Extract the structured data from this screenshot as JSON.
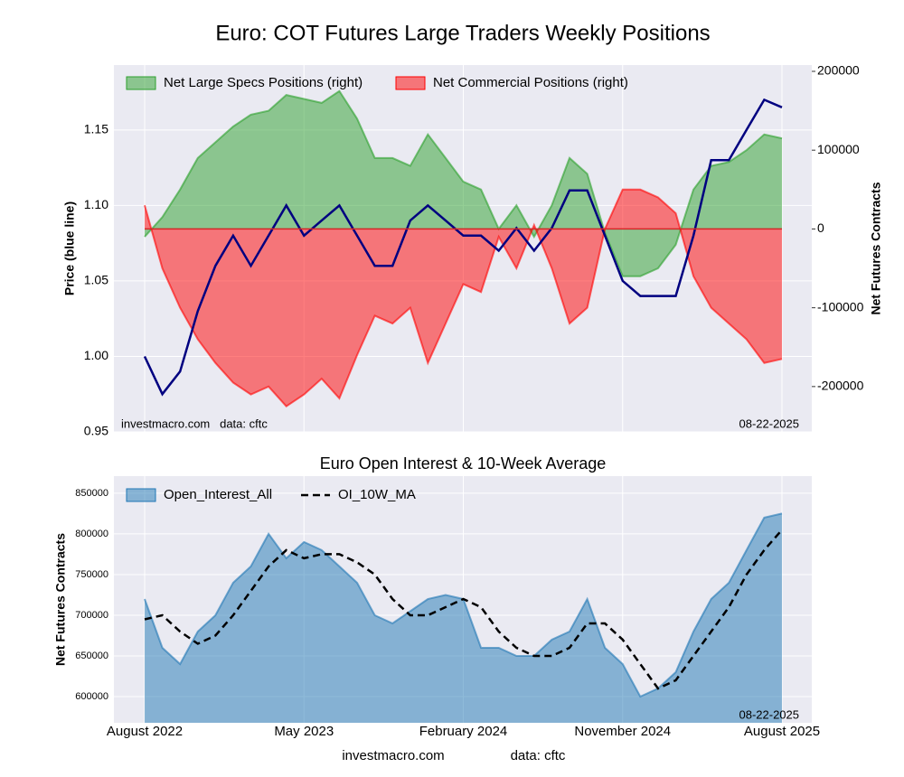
{
  "chart_data": [
    {
      "type": "line",
      "title": "Euro: COT Futures Large Traders Weekly Positions",
      "y_label": "Price (blue line)",
      "y2_label": "Net Futures Contracts",
      "note_left": "investmacro.com   data: cftc",
      "note_right": "08-22-2025",
      "x": [
        "2022-08",
        "2022-09",
        "2022-10",
        "2022-11",
        "2022-12",
        "2023-01",
        "2023-02",
        "2023-03",
        "2023-04",
        "2023-05",
        "2023-06",
        "2023-07",
        "2023-08",
        "2023-09",
        "2023-10",
        "2023-11",
        "2023-12",
        "2024-01",
        "2024-02",
        "2024-03",
        "2024-04",
        "2024-05",
        "2024-06",
        "2024-07",
        "2024-08",
        "2024-09",
        "2024-10",
        "2024-11",
        "2024-12",
        "2025-01",
        "2025-02",
        "2025-03",
        "2025-04",
        "2025-05",
        "2025-06",
        "2025-07",
        "2025-08"
      ],
      "ylim": [
        0.95,
        1.193
      ],
      "yticks": [
        0.95,
        {
          "value": 1,
          "label": "1.00"
        },
        1.05,
        {
          "value": 1.1,
          "label": "1.10"
        },
        1.15
      ],
      "y2lim": [
        -257500,
        208000
      ],
      "y2ticks": [
        -200000,
        -100000,
        0,
        100000,
        200000
      ],
      "grid": true,
      "series": [
        {
          "name": "Net Large Specs Positions (right)",
          "color": "#2ca02c",
          "style": "area",
          "axis": "y2",
          "values": [
            -10000,
            15000,
            50000,
            90000,
            110000,
            130000,
            145000,
            150000,
            170000,
            165000,
            160000,
            175000,
            140000,
            90000,
            90000,
            80000,
            120000,
            90000,
            60000,
            50000,
            0,
            30000,
            -10000,
            30000,
            90000,
            70000,
            -5000,
            -60000,
            -60000,
            -50000,
            -20000,
            50000,
            80000,
            85000,
            100000,
            120000,
            115000
          ]
        },
        {
          "name": "Net Commercial Positions (right)",
          "color": "#ff0000",
          "style": "area",
          "axis": "y2",
          "values": [
            30000,
            -50000,
            -100000,
            -140000,
            -170000,
            -195000,
            -210000,
            -200000,
            -225000,
            -210000,
            -190000,
            -215000,
            -160000,
            -110000,
            -120000,
            -100000,
            -170000,
            -120000,
            -70000,
            -80000,
            -10000,
            -50000,
            5000,
            -50000,
            -120000,
            -100000,
            0,
            50000,
            50000,
            40000,
            20000,
            -60000,
            -100000,
            -120000,
            -140000,
            -170000,
            -165000
          ]
        },
        {
          "name": "Price",
          "color": "#000080",
          "style": "line",
          "values": [
            1.0,
            0.975,
            0.99,
            1.03,
            1.06,
            1.08,
            1.06,
            1.08,
            1.1,
            1.08,
            1.09,
            1.1,
            1.08,
            1.06,
            1.06,
            1.09,
            1.1,
            1.09,
            1.08,
            1.08,
            1.07,
            1.085,
            1.07,
            1.085,
            1.11,
            1.11,
            1.08,
            1.05,
            1.04,
            1.04,
            1.04,
            1.08,
            1.13,
            1.13,
            1.15,
            1.17,
            1.165
          ]
        }
      ]
    },
    {
      "type": "area",
      "title": "Euro Open Interest & 10-Week Average",
      "y_label": "Net Futures Contracts",
      "note_right": "08-22-2025",
      "footer_left": "investmacro.com",
      "footer_right": "data: cftc",
      "x": [
        "2022-08",
        "2022-09",
        "2022-10",
        "2022-11",
        "2022-12",
        "2023-01",
        "2023-02",
        "2023-03",
        "2023-04",
        "2023-05",
        "2023-06",
        "2023-07",
        "2023-08",
        "2023-09",
        "2023-10",
        "2023-11",
        "2023-12",
        "2024-01",
        "2024-02",
        "2024-03",
        "2024-04",
        "2024-05",
        "2024-06",
        "2024-07",
        "2024-08",
        "2024-09",
        "2024-10",
        "2024-11",
        "2024-12",
        "2025-01",
        "2025-02",
        "2025-03",
        "2025-04",
        "2025-05",
        "2025-06",
        "2025-07",
        "2025-08"
      ],
      "xticks": [
        {
          "value": "2022-08",
          "label": "August 2022"
        },
        {
          "value": "2023-05",
          "label": "May 2023"
        },
        {
          "value": "2024-02",
          "label": "February 2024"
        },
        {
          "value": "2024-11",
          "label": "November 2024"
        },
        {
          "value": "2025-08",
          "label": "August 2025"
        }
      ],
      "ylim": [
        567800,
        871000
      ],
      "yticks": [
        600000,
        650000,
        700000,
        750000,
        800000,
        850000
      ],
      "grid": true,
      "series": [
        {
          "name": "Open_Interest_All",
          "color": "#1f77b4",
          "style": "area",
          "values": [
            720000,
            660000,
            640000,
            680000,
            700000,
            740000,
            760000,
            800000,
            770000,
            790000,
            780000,
            760000,
            740000,
            700000,
            690000,
            705000,
            720000,
            725000,
            720000,
            660000,
            660000,
            650000,
            650000,
            670000,
            680000,
            720000,
            660000,
            640000,
            600000,
            610000,
            630000,
            680000,
            720000,
            740000,
            780000,
            820000,
            825000
          ]
        },
        {
          "name": "OI_10W_MA",
          "color": "#000000",
          "style": "dashed",
          "values": [
            695000,
            700000,
            680000,
            665000,
            675000,
            700000,
            730000,
            760000,
            780000,
            770000,
            775000,
            775000,
            765000,
            750000,
            720000,
            700000,
            700000,
            710000,
            720000,
            710000,
            680000,
            660000,
            650000,
            650000,
            660000,
            690000,
            690000,
            670000,
            640000,
            610000,
            620000,
            650000,
            680000,
            710000,
            750000,
            780000,
            805000
          ]
        }
      ]
    }
  ]
}
